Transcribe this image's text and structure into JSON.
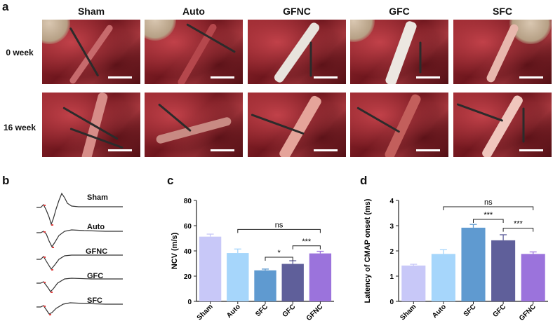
{
  "panel_a": {
    "letter": "a",
    "columns": [
      "Sham",
      "Auto",
      "GFNC",
      "GFC",
      "SFC"
    ],
    "rows": [
      "0 week",
      "16 week"
    ],
    "photo_icon": "surgical-nerve-photo"
  },
  "panel_b": {
    "letter": "b",
    "traces": [
      "Sham",
      "Auto",
      "GFNC",
      "GFC",
      "SFC"
    ]
  },
  "panel_c": {
    "letter": "c",
    "significance": [
      "ns",
      "*",
      "***"
    ]
  },
  "panel_d": {
    "letter": "d",
    "significance": [
      "ns",
      "***",
      "***"
    ]
  },
  "chart_data": [
    {
      "id": "c",
      "type": "bar",
      "categories": [
        "Sham",
        "Auto",
        "SFC",
        "GFC",
        "GFNC"
      ],
      "values": [
        51.3,
        38.3,
        24.6,
        29.7,
        38.0
      ],
      "errors": [
        2.0,
        3.2,
        1.0,
        2.5,
        1.7
      ],
      "colors": [
        "#c8c8f8",
        "#a6d6fb",
        "#5f9ad0",
        "#5f5f9a",
        "#9b73dc"
      ],
      "xlabel": "",
      "ylabel": "NCV (m/s)",
      "ylim": [
        0,
        80
      ],
      "yticks": [
        "0",
        "20",
        "40",
        "60",
        "80"
      ],
      "brackets": [
        {
          "from": 1,
          "to": 4,
          "level": 57,
          "label": "ns"
        },
        {
          "from": 2,
          "to": 3,
          "level": 35,
          "label": "*"
        },
        {
          "from": 3,
          "to": 4,
          "level": 44,
          "label": "***"
        }
      ]
    },
    {
      "id": "d",
      "type": "bar",
      "categories": [
        "Sham",
        "Auto",
        "SFC",
        "GFC",
        "GFNC"
      ],
      "values": [
        1.42,
        1.88,
        2.92,
        2.42,
        1.88
      ],
      "errors": [
        0.05,
        0.17,
        0.13,
        0.22,
        0.08
      ],
      "colors": [
        "#c8c8f8",
        "#a6d6fb",
        "#5f9ad0",
        "#5f5f9a",
        "#9b73dc"
      ],
      "xlabel": "",
      "ylabel": "Latency of CMAP onset (ms)",
      "ylim": [
        0,
        4
      ],
      "yticks": [
        "0",
        "1",
        "2",
        "3",
        "4"
      ],
      "brackets": [
        {
          "from": 1,
          "to": 4,
          "level": 3.75,
          "label": "ns"
        },
        {
          "from": 2,
          "to": 3,
          "level": 3.25,
          "label": "***"
        },
        {
          "from": 3,
          "to": 4,
          "level": 2.9,
          "label": "***"
        }
      ]
    }
  ]
}
